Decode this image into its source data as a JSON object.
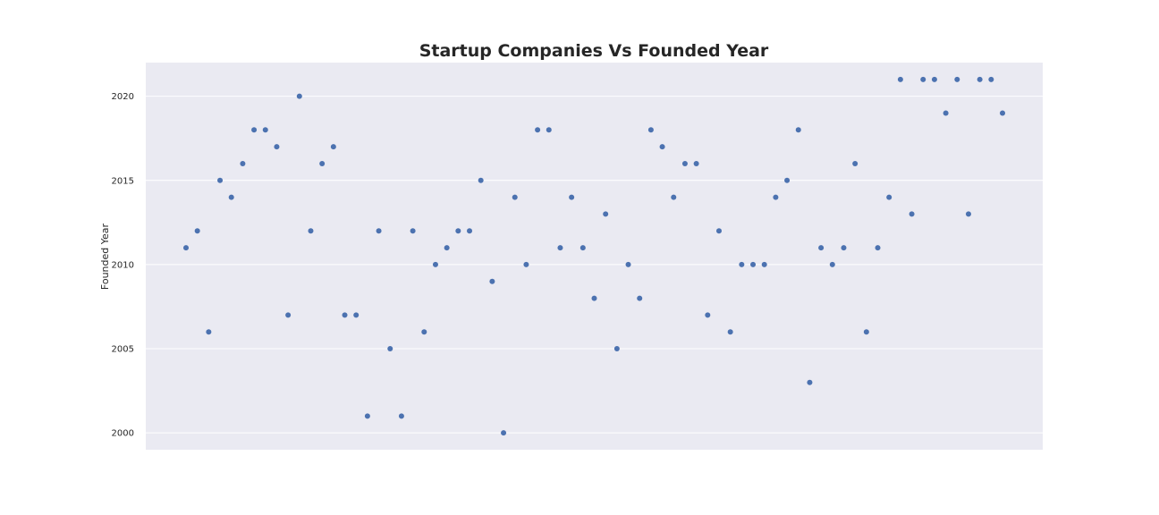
{
  "chart_data": {
    "type": "scatter",
    "title": "Startup Companies Vs Founded Year",
    "xlabel": "",
    "ylabel": "Founded Year",
    "ylim": [
      1999,
      2022
    ],
    "yticks": [
      2000,
      2005,
      2010,
      2015,
      2020
    ],
    "x_tick_labels_visible": false,
    "grid": true,
    "point_color": "#4c72b0",
    "background_color": "#eaeaf2",
    "grid_color": "#ffffff",
    "series": [
      {
        "values": [
          2011,
          2012,
          2006,
          2015,
          2014,
          2016,
          2018,
          2018,
          2017,
          2007,
          2020,
          2012,
          2016,
          2017,
          2007,
          2007,
          2001,
          2012,
          2005,
          2001,
          2012,
          2006,
          2010,
          2011,
          2012,
          2012,
          2015,
          2009,
          2000,
          2014,
          2010,
          2018,
          2018,
          2011,
          2014,
          2011,
          2008,
          2013,
          2005,
          2010,
          2008,
          2018,
          2017,
          2014,
          2016,
          2016,
          2007,
          2012,
          2006,
          2010,
          2010,
          2010,
          2014,
          2015,
          2018,
          2003,
          2011,
          2010,
          2011,
          2016,
          2006,
          2011,
          2014,
          2021,
          2013,
          2021,
          2021,
          2019,
          2021,
          2013,
          2021,
          2021,
          2019
        ]
      }
    ]
  }
}
